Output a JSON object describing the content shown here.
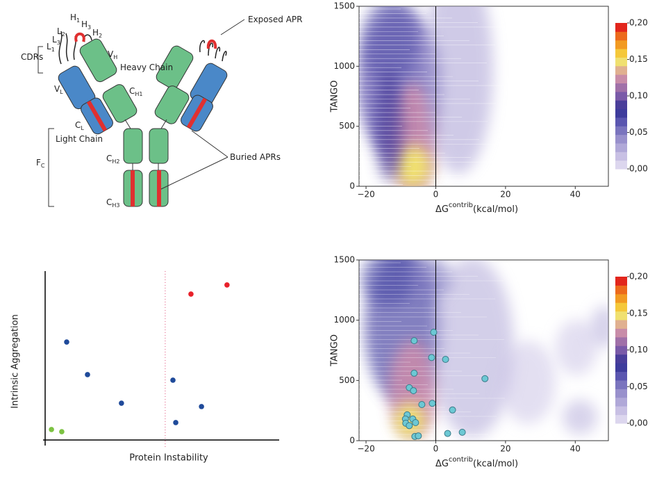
{
  "diagram": {
    "labels": [
      {
        "t": "H",
        "s": "1"
      },
      {
        "t": "H",
        "s": "3"
      },
      {
        "t": "H",
        "s": "2"
      },
      {
        "t": "L",
        "s": "2"
      },
      {
        "t": "L",
        "s": "3"
      },
      {
        "t": "L",
        "s": "1"
      },
      {
        "t": "CDRs"
      },
      {
        "t": "V",
        "s": "H"
      },
      {
        "t": "Heavy Chain"
      },
      {
        "t": "V",
        "s": "L"
      },
      {
        "t": "C",
        "s": "H1"
      },
      {
        "t": "C",
        "s": "L"
      },
      {
        "t": "Light Chain"
      },
      {
        "t": "F",
        "s": "C"
      },
      {
        "t": "C",
        "s": "H2"
      },
      {
        "t": "C",
        "s": "H3"
      },
      {
        "t": "Exposed APR"
      },
      {
        "t": "Buried APRs"
      }
    ]
  },
  "chart_data": [
    {
      "type": "heatmap",
      "ylabel": "TANGO",
      "xlabel": {
        "main": "ΔG",
        "sup": "contrib",
        "unit": "(kcal/mol)"
      },
      "xlim": [
        -22,
        49.5
      ],
      "xticks": [
        {
          "value": -20,
          "label": "−20"
        },
        0,
        20,
        40
      ],
      "ylim": [
        0,
        1500
      ],
      "yticks": [
        0,
        500,
        1000,
        1500
      ],
      "vline": 0,
      "colorbar": {
        "lim": [
          0,
          0.2
        ],
        "ticks": [
          {
            "value": 0,
            "label": "0,00"
          },
          {
            "value": 0.05,
            "label": "0,05"
          },
          {
            "value": 0.1,
            "label": "0,10"
          },
          {
            "value": 0.15,
            "label": "0,15"
          },
          {
            "value": 0.2,
            "label": "0,20"
          }
        ],
        "colors": [
          "#dcd6ee",
          "#c8c0e4",
          "#b0a8d8",
          "#9890cc",
          "#7a74be",
          "#5a56b0",
          "#3e3c9c",
          "#4a3e9a",
          "#7a5aa8",
          "#a070a8",
          "#c88ca8",
          "#e0b090",
          "#f0e070",
          "#f5c83a",
          "#f29a22",
          "#ec6a1c",
          "#e2261c"
        ]
      }
    },
    {
      "type": "heatmap",
      "ylabel": "TANGO",
      "xlabel": {
        "main": "ΔG",
        "sup": "contrib",
        "unit": "(kcal/mol)"
      },
      "xlim": [
        -22,
        49.5
      ],
      "xticks": [
        {
          "value": -20,
          "label": "−20"
        },
        0,
        20,
        40
      ],
      "ylim": [
        0,
        1500
      ],
      "yticks": [
        0,
        500,
        1000,
        1500
      ],
      "vline": 0,
      "colorbar": {
        "lim": [
          0,
          0.2
        ],
        "ticks": [
          {
            "value": 0,
            "label": "0,00"
          },
          {
            "value": 0.05,
            "label": "0,05"
          },
          {
            "value": 0.1,
            "label": "0,10"
          },
          {
            "value": 0.15,
            "label": "0,15"
          },
          {
            "value": 0.2,
            "label": "0,20"
          }
        ],
        "colors": [
          "#dcd6ee",
          "#c8c0e4",
          "#b0a8d8",
          "#9890cc",
          "#7a74be",
          "#5a56b0",
          "#3e3c9c",
          "#4a3e9a",
          "#7a5aa8",
          "#a070a8",
          "#c88ca8",
          "#e0b090",
          "#f0e070",
          "#f5c83a",
          "#f29a22",
          "#ec6a1c",
          "#e2261c"
        ]
      },
      "points": {
        "color": "#6cc8d4",
        "x": [
          -0.6,
          -6.2,
          -1.2,
          2.8,
          -6.2,
          14.1,
          -7.6,
          -6.4,
          -4,
          -1,
          4.8,
          -8.2,
          -6.6,
          -8.7,
          -5.8,
          -8.6,
          -7.6,
          3.4,
          7.6,
          -6,
          -5
        ],
        "y": [
          900,
          830,
          690,
          675,
          560,
          515,
          440,
          415,
          300,
          310,
          255,
          215,
          180,
          180,
          150,
          145,
          125,
          60,
          70,
          35,
          40
        ]
      }
    },
    {
      "type": "scatter",
      "xlabel": "Protein Instability",
      "ylabel": "Intrinsic Aggregation",
      "xlim": [
        0,
        100
      ],
      "ylim": [
        0,
        100
      ],
      "vline": 51.3,
      "x": [
        2.7,
        7.1,
        9.2,
        18.1,
        32.6,
        54.6,
        55.8,
        66.8,
        62.3,
        77.7
      ],
      "y": [
        6.2,
        4.9,
        58,
        38.7,
        21.8,
        35.4,
        10.3,
        19.8,
        86.4,
        91.8
      ],
      "colors": [
        "#7cc242",
        "#7cc242",
        "#1f4a9a",
        "#1f4a9a",
        "#1f4a9a",
        "#1f4a9a",
        "#1f4a9a",
        "#1f4a9a",
        "#e8202a",
        "#e8202a"
      ]
    }
  ]
}
